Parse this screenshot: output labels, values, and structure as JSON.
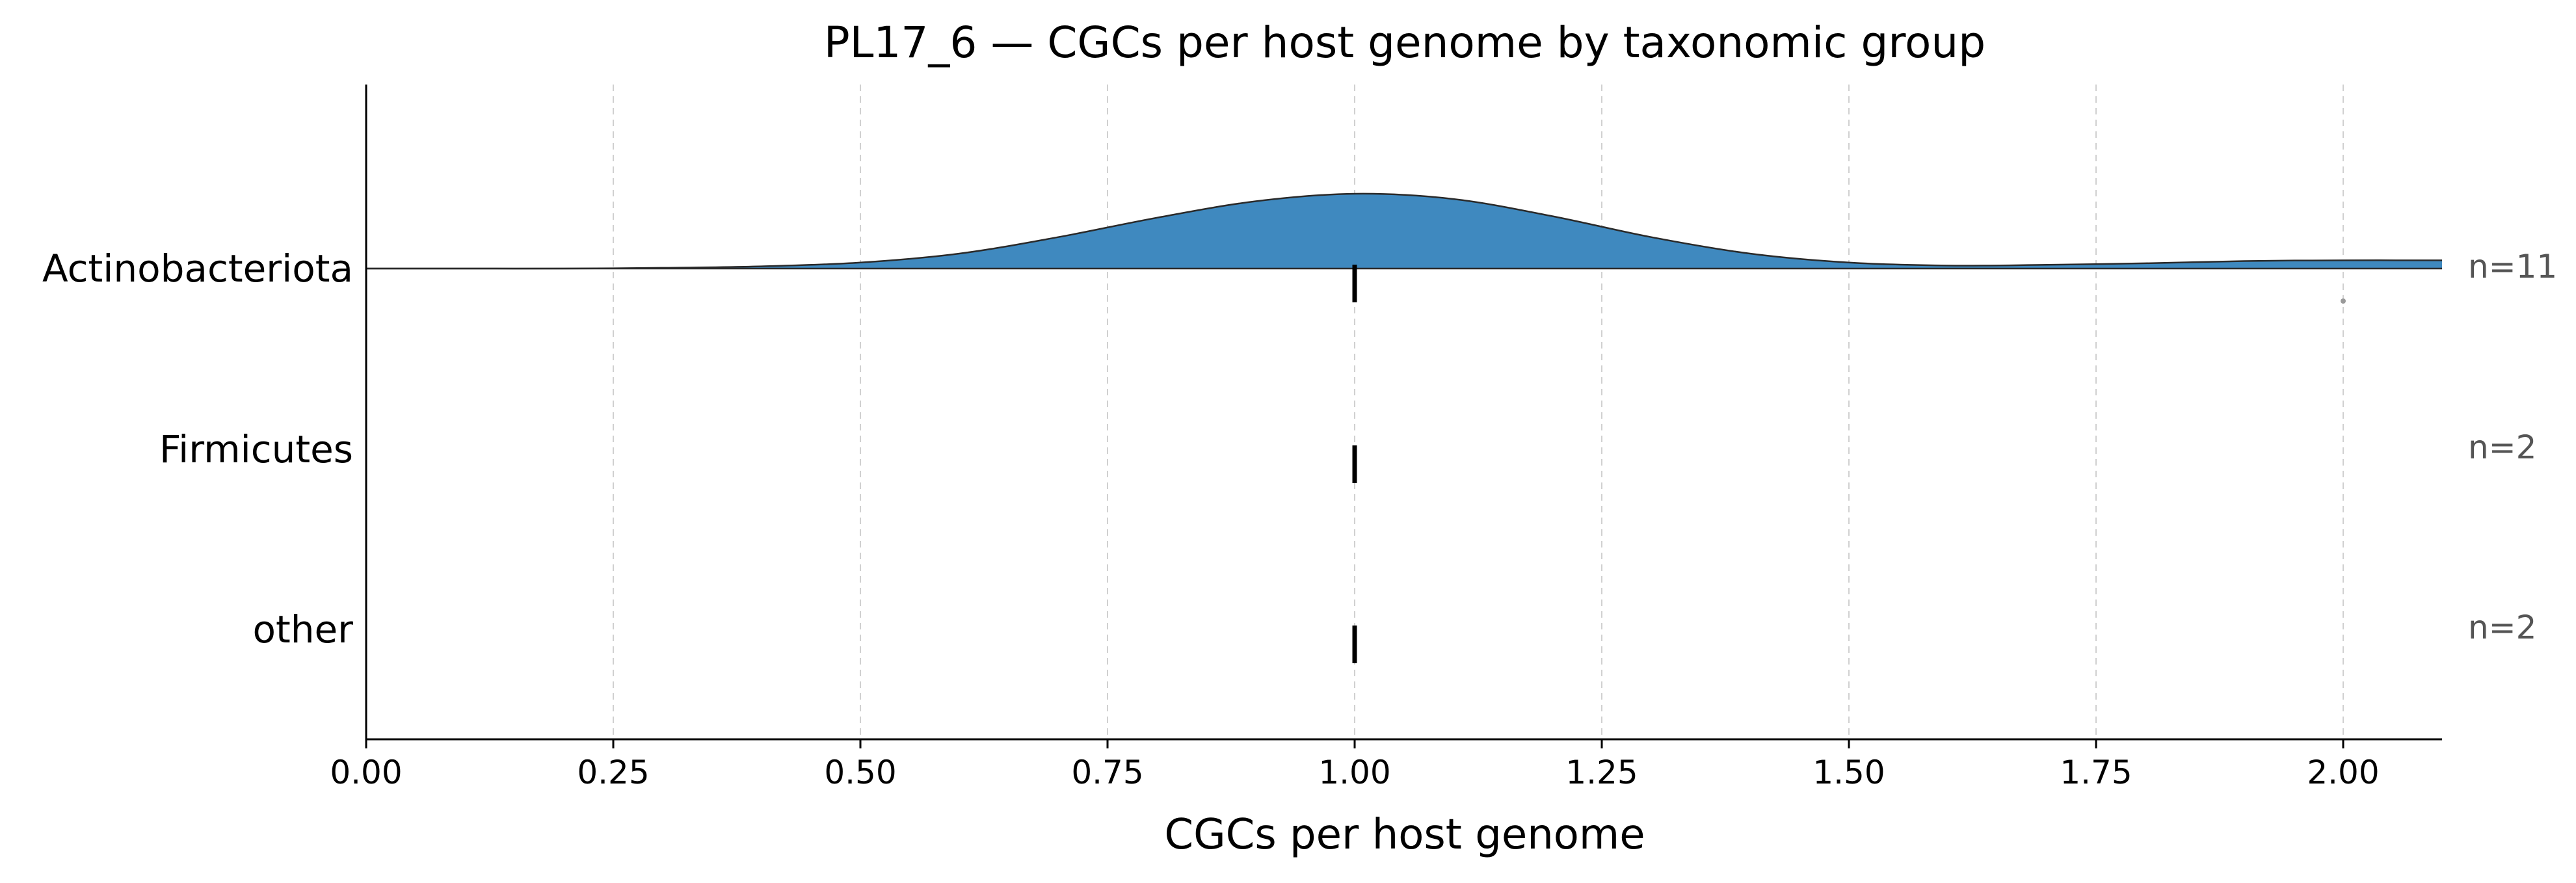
{
  "chart_data": {
    "type": "ridgeline",
    "title": "PL17_6 — CGCs per host genome by taxonomic group",
    "xlabel": "CGCs per host genome",
    "ylabel": "",
    "xlim": [
      0,
      2.1
    ],
    "xticks": [
      "0.00",
      "0.25",
      "0.50",
      "0.75",
      "1.00",
      "1.25",
      "1.50",
      "1.75",
      "2.00"
    ],
    "xtick_values": [
      0,
      0.25,
      0.5,
      0.75,
      1.0,
      1.25,
      1.5,
      1.75,
      2.0
    ],
    "grid": "vertical dashed",
    "groups": [
      {
        "name": "Actinobacteriota",
        "count_label": "n=11",
        "median": 1.0,
        "values": [
          1,
          1,
          1,
          1,
          1,
          1,
          1,
          1,
          1,
          1,
          2
        ],
        "density_x": [
          0,
          0.1,
          0.2,
          0.3,
          0.4,
          0.5,
          0.6,
          0.7,
          0.8,
          0.9,
          1.0,
          1.1,
          1.2,
          1.3,
          1.4,
          1.5,
          1.6,
          1.7,
          1.8,
          1.9,
          2.0,
          2.1
        ],
        "density_y": [
          0.0,
          0.0,
          0.0,
          0.01,
          0.03,
          0.08,
          0.2,
          0.42,
          0.68,
          0.9,
          1.0,
          0.93,
          0.7,
          0.42,
          0.2,
          0.08,
          0.04,
          0.05,
          0.07,
          0.1,
          0.11,
          0.11
        ],
        "outliers": [
          2.0
        ],
        "color": "#3f89bf"
      },
      {
        "name": "Firmicutes",
        "count_label": "n=2",
        "median": 1.0
      },
      {
        "name": "other",
        "count_label": "n=2",
        "median": 1.0
      }
    ],
    "colors": {
      "fill": "#3f89bf",
      "outline": "#2a2a2a",
      "median": "#000000",
      "grid": "#d0d0d0",
      "outlier": "#9a9a9a",
      "count_text": "#555555"
    }
  }
}
